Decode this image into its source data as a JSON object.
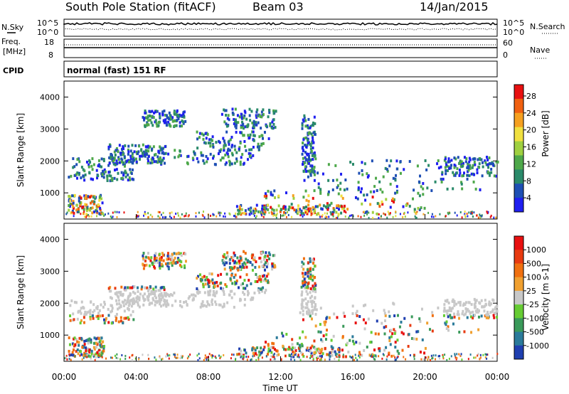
{
  "header": {
    "station": "South Pole Station (fitACF)",
    "beam": "Beam 03",
    "date": "14/Jan/2015"
  },
  "aux_panel": {
    "nsky_label": "N.Sky",
    "nsearch_label": "N.Search",
    "nsky_ticks": [
      "10^5",
      "10^0"
    ],
    "nsearch_ticks": [
      "10^5",
      "10^0"
    ],
    "freq_label": "Freq.",
    "freq_unit": "[MHz]",
    "freq_ticks": [
      "18",
      "8"
    ],
    "nave_label": "Nave",
    "nave_ticks": [
      "60",
      "0"
    ],
    "cpid_label": "CPID",
    "cpid_value": "normal (fast) 151 RF"
  },
  "chart_data": [
    {
      "type": "heatmap",
      "title": "",
      "quantity": "Power",
      "xlabel": "Time UT",
      "ylabel": "Slant Range [km]",
      "x_ticks": [
        "00:00",
        "04:00",
        "08:00",
        "12:00",
        "16:00",
        "20:00",
        "00:00"
      ],
      "x_range_hours": [
        0,
        24
      ],
      "y_ticks": [
        1000,
        2000,
        3000,
        4000
      ],
      "ylim": [
        180,
        4500
      ],
      "colorbar": {
        "label": "Power [dB]",
        "ticks": [
          4,
          8,
          12,
          16,
          20,
          24,
          28
        ],
        "range": [
          0,
          30
        ],
        "colors": [
          "#1f1ff0",
          "#1e4fb4",
          "#2a8a6a",
          "#4ea84a",
          "#9fd040",
          "#f0e040",
          "#f5a020",
          "#f06010",
          "#e81010"
        ]
      }
    },
    {
      "type": "heatmap",
      "title": "",
      "quantity": "Velocity",
      "xlabel": "Time UT",
      "ylabel": "Slant Range [km]",
      "x_ticks": [
        "00:00",
        "04:00",
        "08:00",
        "12:00",
        "16:00",
        "20:00",
        "00:00"
      ],
      "x_range_hours": [
        0,
        24
      ],
      "y_ticks": [
        1000,
        2000,
        3000,
        4000
      ],
      "ylim": [
        180,
        4500
      ],
      "colorbar": {
        "label": "Velocity [m s-1]",
        "ticks": [
          "1000",
          "500",
          "100",
          "25",
          "-25",
          "-100",
          "-500",
          "-1000"
        ],
        "colors": [
          "#1f3fb0",
          "#2a7a9a",
          "#3a9a5a",
          "#66cc33",
          "#c8c8c8",
          "#f0a030",
          "#f07010",
          "#e83a10",
          "#e81010"
        ]
      }
    }
  ]
}
